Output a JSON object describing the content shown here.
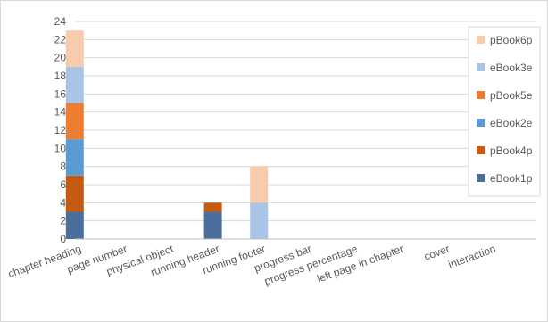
{
  "chart_data": {
    "type": "bar",
    "stacked": true,
    "categories": [
      "chapter heading",
      "page number",
      "physical object",
      "running header",
      "running footer",
      "progress bar",
      "progress percentage",
      "left page in chapter",
      "cover",
      "interaction"
    ],
    "series": [
      {
        "name": "eBook1p",
        "color": "#4a6f9c",
        "values": [
          3,
          0,
          0,
          3,
          0,
          0,
          0,
          0,
          0,
          0
        ]
      },
      {
        "name": "pBook4p",
        "color": "#c55a11",
        "values": [
          4,
          0,
          0,
          1,
          0,
          0,
          0,
          0,
          0,
          0
        ]
      },
      {
        "name": "eBook2e",
        "color": "#5b9bd5",
        "values": [
          4,
          0,
          0,
          0,
          0,
          0,
          0,
          0,
          0,
          0
        ]
      },
      {
        "name": "pBook5e",
        "color": "#ed7d31",
        "values": [
          4,
          0,
          0,
          0,
          0,
          0,
          0,
          0,
          0,
          0
        ]
      },
      {
        "name": "eBook3e",
        "color": "#a9c4e6",
        "values": [
          4,
          0,
          0,
          0,
          4,
          0,
          0,
          0,
          0,
          0
        ]
      },
      {
        "name": "pBook6p",
        "color": "#f8cbad",
        "values": [
          4,
          0,
          0,
          0,
          4,
          0,
          0,
          0,
          0,
          0
        ]
      }
    ],
    "ylim": [
      0,
      24
    ],
    "yticks": [
      0,
      2,
      4,
      6,
      8,
      10,
      12,
      14,
      16,
      18,
      20,
      22,
      24
    ],
    "grid": true,
    "legend_position": "right",
    "legend_order": [
      "pBook6p",
      "eBook3e",
      "pBook5e",
      "eBook2e",
      "pBook4p",
      "eBook1p"
    ],
    "title": "",
    "xlabel": "",
    "ylabel": ""
  }
}
